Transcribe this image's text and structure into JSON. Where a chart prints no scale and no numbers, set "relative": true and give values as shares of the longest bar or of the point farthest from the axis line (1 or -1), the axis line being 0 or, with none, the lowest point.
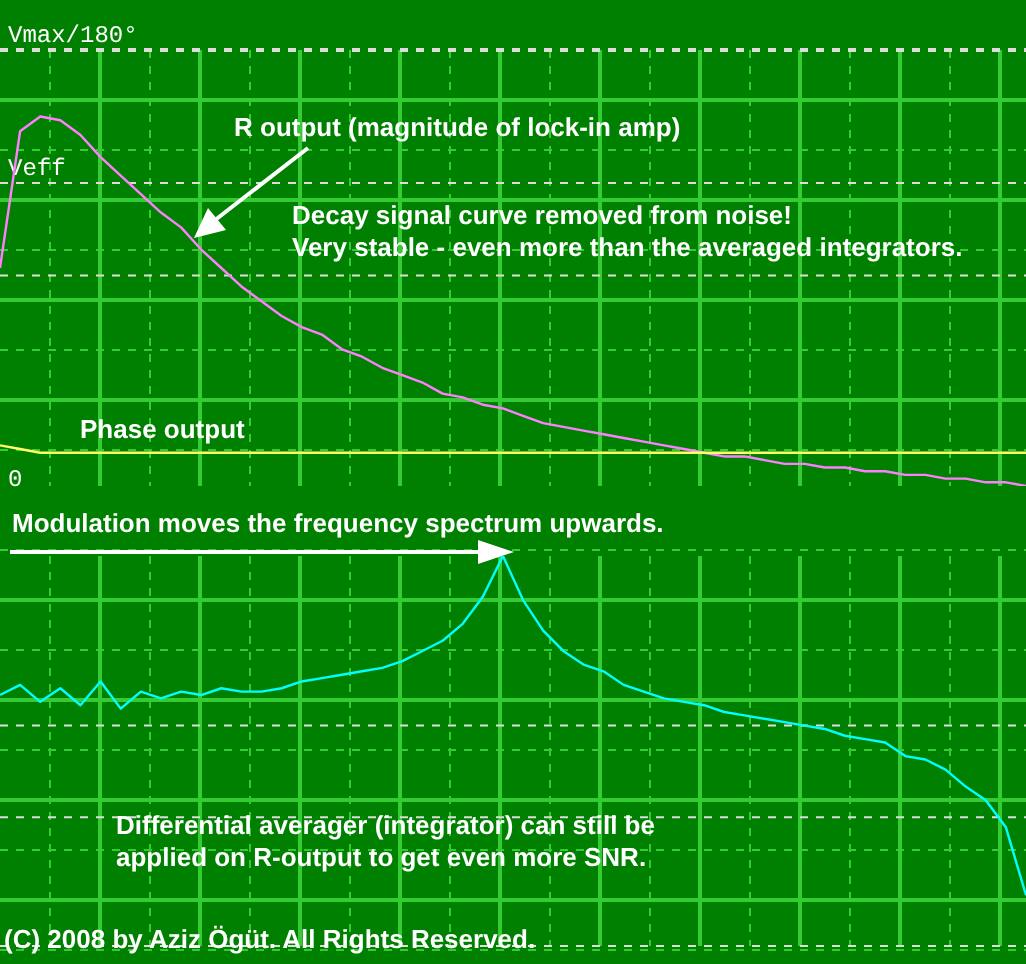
{
  "chart_data": [
    {
      "type": "line",
      "relative": true,
      "grid": true,
      "categories": [
        null,
        null,
        null,
        null,
        null,
        null,
        null,
        null,
        null,
        null,
        null,
        null,
        null,
        null,
        null,
        null,
        null,
        null,
        null,
        null,
        null,
        null,
        null,
        null,
        null,
        null,
        null,
        null,
        null,
        null,
        null,
        null,
        null,
        null,
        null,
        null,
        null,
        null,
        null,
        null,
        null,
        null,
        null,
        null,
        null,
        null,
        null,
        null,
        null,
        null,
        null,
        null
      ],
      "series": [
        {
          "color": "#ff80ff",
          "values": [
            0.59,
            0.96,
            1.0,
            0.99,
            0.95,
            0.89,
            0.84,
            0.79,
            0.74,
            0.7,
            0.64,
            0.59,
            0.54,
            0.5,
            0.46,
            0.43,
            0.41,
            0.37,
            0.35,
            0.32,
            0.3,
            0.28,
            0.25,
            0.24,
            0.22,
            0.21,
            0.19,
            0.17,
            0.16,
            0.15,
            0.14,
            0.13,
            0.12,
            0.11,
            0.1,
            0.09,
            0.08,
            0.08,
            0.07,
            0.06,
            0.06,
            0.05,
            0.05,
            0.04,
            0.04,
            0.03,
            0.03,
            0.02,
            0.02,
            0.01,
            0.01,
            0
          ]
        },
        {
          "color": "#ffff66",
          "values": [
            0.11,
            0.1,
            0.09,
            0.09,
            0.09,
            0.09,
            0.09,
            0.09,
            0.09,
            0.09,
            0.09,
            0.09,
            0.09,
            0.09,
            0.09,
            0.09,
            0.09,
            0.09,
            0.09,
            0.09,
            0.09,
            0.09,
            0.09,
            0.09,
            0.09,
            0.09,
            0.09,
            0.09,
            0.09,
            0.09,
            0.09,
            0.09,
            0.09,
            0.09,
            0.09,
            0.09,
            0.09,
            0.09,
            0.09,
            0.09,
            0.09,
            0.09,
            0.09,
            0.09,
            0.09,
            0.09,
            0.09,
            0.09,
            0.09,
            0.09,
            0.09,
            0.09
          ]
        }
      ],
      "ref_lines": [
        {
          "axis": "y",
          "value": 1.18,
          "label": "Vmax/180°",
          "line_style": "dashed"
        },
        {
          "axis": "y",
          "value": 0.82,
          "label": "Veff",
          "line_style": "dashed"
        },
        {
          "axis": "y",
          "value": 0.57,
          "label": null,
          "line_style": "dashed"
        }
      ],
      "annotations": [
        "Decay signal curve removed from noise!\nVery stable - even more than the averaged integrators.",
        "R output (magnitude of lock-in amp)",
        "0",
        "Phase output"
      ]
    },
    {
      "type": "line",
      "relative": true,
      "grid": true,
      "categories": [
        null,
        null,
        null,
        null,
        null,
        null,
        null,
        null,
        null,
        null,
        null,
        null,
        null,
        null,
        null,
        null,
        null,
        null,
        null,
        null,
        null,
        null,
        null,
        null,
        null,
        null,
        null,
        null,
        null,
        null,
        null,
        null,
        null,
        null,
        null,
        null,
        null,
        null,
        null,
        null,
        null,
        null,
        null,
        null,
        null,
        null,
        null,
        null,
        null,
        null,
        null,
        null
      ],
      "series": [
        {
          "color": "#00ffff",
          "values": [
            0.59,
            0.62,
            0.57,
            0.61,
            0.56,
            0.63,
            0.55,
            0.6,
            0.58,
            0.6,
            0.59,
            0.61,
            0.6,
            0.6,
            0.61,
            0.63,
            0.64,
            0.65,
            0.66,
            0.67,
            0.69,
            0.72,
            0.75,
            0.8,
            0.88,
            1.0,
            0.87,
            0.78,
            0.72,
            0.68,
            0.66,
            0.62,
            0.6,
            0.58,
            0.57,
            0.56,
            0.54,
            0.53,
            0.52,
            0.51,
            0.5,
            0.49,
            0.47,
            0.46,
            0.45,
            0.41,
            0.4,
            0.37,
            0.32,
            0.28,
            0.2,
            0
          ]
        }
      ],
      "ref_lines": [
        {
          "axis": "y",
          "value": 0.5,
          "label": null,
          "line_style": "dashed"
        },
        {
          "axis": "y",
          "value": 0.23,
          "label": null,
          "line_style": "dashed"
        },
        {
          "axis": "y",
          "value": -0.15,
          "label": null,
          "line_style": "dashed"
        }
      ],
      "annotations": [
        "Modulation moves the frequency spectrum upwards.",
        "Differential averager (integrator) can still be\napplied on R-output to get even more SNR.",
        "(C) 2008 by Aziz Ögüt. All Rights Reserved."
      ]
    }
  ]
}
